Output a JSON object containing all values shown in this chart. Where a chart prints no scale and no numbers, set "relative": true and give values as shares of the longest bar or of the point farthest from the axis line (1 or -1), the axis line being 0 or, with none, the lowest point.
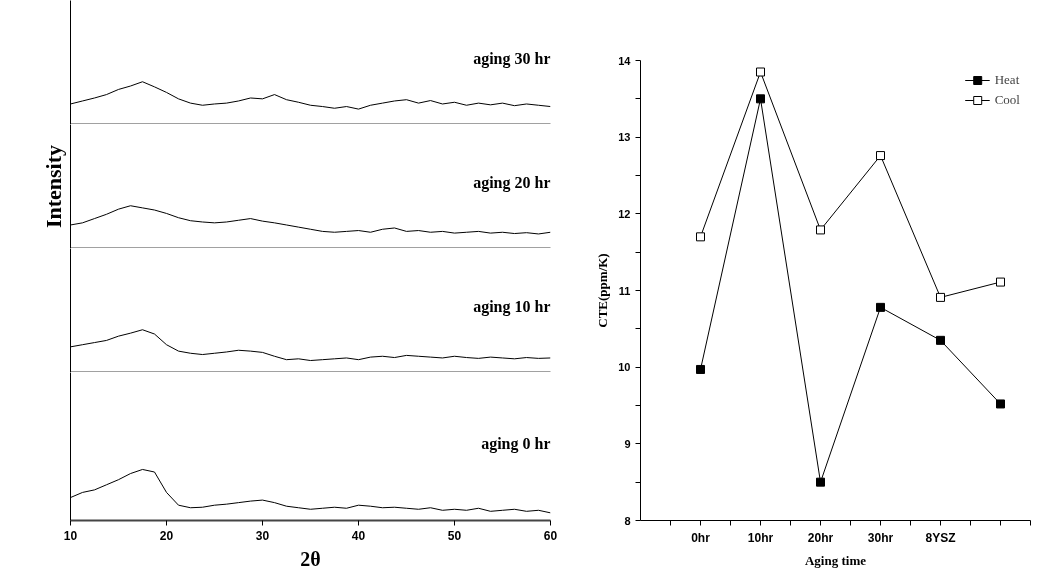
{
  "chart_data": [
    {
      "type": "line",
      "relative": true,
      "tick_labels": false,
      "annotations": [
        "aging 30 hr"
      ],
      "xlim": [
        10,
        60
      ],
      "x": [
        10,
        11.25,
        12.5,
        13.75,
        15,
        16.25,
        17.5,
        18.75,
        20,
        21.25,
        22.5,
        23.75,
        25,
        26.25,
        27.5,
        28.75,
        30,
        31.25,
        32.5,
        33.75,
        35,
        36.25,
        37.5,
        38.75,
        40,
        41.25,
        42.5,
        43.75,
        45,
        46.25,
        47.5,
        48.75,
        50,
        51.25,
        52.5,
        53.75,
        55,
        56.25,
        57.5,
        58.75,
        60
      ],
      "series": [
        {
          "color": "#000000",
          "values": [
            0.48,
            0.55,
            0.62,
            0.7,
            0.82,
            0.9,
            1.0,
            0.88,
            0.75,
            0.6,
            0.5,
            0.45,
            0.48,
            0.5,
            0.55,
            0.62,
            0.6,
            0.7,
            0.58,
            0.52,
            0.45,
            0.42,
            0.38,
            0.42,
            0.36,
            0.45,
            0.5,
            0.55,
            0.58,
            0.5,
            0.56,
            0.48,
            0.52,
            0.45,
            0.5,
            0.46,
            0.5,
            0.44,
            0.48,
            0.45,
            0.42
          ]
        }
      ]
    },
    {
      "type": "line",
      "relative": true,
      "tick_labels": false,
      "ylabel": "Intensity",
      "annotations": [
        "aging 20 hr"
      ],
      "xlim": [
        10,
        60
      ],
      "x": [
        10,
        11.25,
        12.5,
        13.75,
        15,
        16.25,
        17.5,
        18.75,
        20,
        21.25,
        22.5,
        23.75,
        25,
        26.25,
        27.5,
        28.75,
        30,
        31.25,
        32.5,
        33.75,
        35,
        36.25,
        37.5,
        38.75,
        40,
        41.25,
        42.5,
        43.75,
        45,
        46.25,
        47.5,
        48.75,
        50,
        51.25,
        52.5,
        53.75,
        55,
        56.25,
        57.5,
        58.75,
        60
      ],
      "series": [
        {
          "color": "#000000",
          "values": [
            0.55,
            0.6,
            0.7,
            0.8,
            0.92,
            1.0,
            0.95,
            0.9,
            0.82,
            0.72,
            0.65,
            0.62,
            0.6,
            0.62,
            0.66,
            0.7,
            0.64,
            0.6,
            0.55,
            0.5,
            0.45,
            0.4,
            0.38,
            0.4,
            0.42,
            0.38,
            0.45,
            0.48,
            0.4,
            0.42,
            0.38,
            0.4,
            0.36,
            0.38,
            0.4,
            0.36,
            0.38,
            0.35,
            0.37,
            0.34,
            0.38
          ]
        }
      ]
    },
    {
      "type": "line",
      "relative": true,
      "tick_labels": false,
      "annotations": [
        "aging 10 hr"
      ],
      "xlim": [
        10,
        60
      ],
      "x": [
        10,
        11.25,
        12.5,
        13.75,
        15,
        16.25,
        17.5,
        18.75,
        20,
        21.25,
        22.5,
        23.75,
        25,
        26.25,
        27.5,
        28.75,
        30,
        31.25,
        32.5,
        33.75,
        35,
        36.25,
        37.5,
        38.75,
        40,
        41.25,
        42.5,
        43.75,
        45,
        46.25,
        47.5,
        48.75,
        50,
        51.25,
        52.5,
        53.75,
        55,
        56.25,
        57.5,
        58.75,
        60
      ],
      "series": [
        {
          "color": "#000000",
          "values": [
            0.6,
            0.65,
            0.7,
            0.75,
            0.85,
            0.92,
            1.0,
            0.9,
            0.65,
            0.5,
            0.45,
            0.42,
            0.45,
            0.48,
            0.52,
            0.5,
            0.47,
            0.38,
            0.3,
            0.32,
            0.28,
            0.3,
            0.32,
            0.34,
            0.3,
            0.36,
            0.38,
            0.35,
            0.4,
            0.38,
            0.36,
            0.34,
            0.38,
            0.35,
            0.33,
            0.36,
            0.34,
            0.32,
            0.35,
            0.33,
            0.34
          ]
        }
      ]
    },
    {
      "type": "line",
      "relative": true,
      "tick_labels": "x",
      "xlabel": "2θ",
      "annotations": [
        "aging 0 hr"
      ],
      "xlim": [
        10,
        60
      ],
      "xticks": [
        10,
        20,
        30,
        40,
        50,
        60
      ],
      "x": [
        10,
        11.25,
        12.5,
        13.75,
        15,
        16.25,
        17.5,
        18.75,
        20,
        21.25,
        22.5,
        23.75,
        25,
        26.25,
        27.5,
        28.75,
        30,
        31.25,
        32.5,
        33.75,
        35,
        36.25,
        37.5,
        38.75,
        40,
        41.25,
        42.5,
        43.75,
        45,
        46.25,
        47.5,
        48.75,
        50,
        51.25,
        52.5,
        53.75,
        55,
        56.25,
        57.5,
        58.75,
        60
      ],
      "series": [
        {
          "color": "#000000",
          "values": [
            0.45,
            0.55,
            0.6,
            0.7,
            0.8,
            0.92,
            1.0,
            0.95,
            0.55,
            0.3,
            0.25,
            0.26,
            0.3,
            0.32,
            0.35,
            0.38,
            0.4,
            0.35,
            0.28,
            0.25,
            0.22,
            0.24,
            0.26,
            0.24,
            0.3,
            0.28,
            0.25,
            0.26,
            0.24,
            0.22,
            0.25,
            0.2,
            0.22,
            0.2,
            0.24,
            0.18,
            0.2,
            0.22,
            0.18,
            0.2,
            0.15
          ]
        }
      ]
    },
    {
      "type": "line",
      "xlabel": "Aging time",
      "ylabel": "CTE(ppm/K)",
      "categories": [
        "0hr",
        "10hr",
        "20hr",
        "30hr",
        "8YSZ",
        null
      ],
      "ylim": [
        8,
        14
      ],
      "yticks": [
        8,
        {
          "value": 8.5,
          "label": null
        },
        9,
        {
          "value": 9.5,
          "label": null
        },
        10,
        {
          "value": 10.5,
          "label": null
        },
        11,
        {
          "value": 11.5,
          "label": null
        },
        12,
        {
          "value": 12.5,
          "label": null
        },
        13,
        {
          "value": 13.5,
          "label": null
        },
        14
      ],
      "marker": "square",
      "legend": "top right",
      "series": [
        {
          "name": "Heat",
          "color": "#000000",
          "values": [
            9.97,
            13.5,
            8.5,
            10.78,
            10.35,
            9.52
          ]
        },
        {
          "name": "Cool",
          "color": "#000000",
          "values": [
            11.7,
            13.85,
            11.79,
            12.76,
            10.91,
            11.11
          ]
        }
      ]
    }
  ]
}
